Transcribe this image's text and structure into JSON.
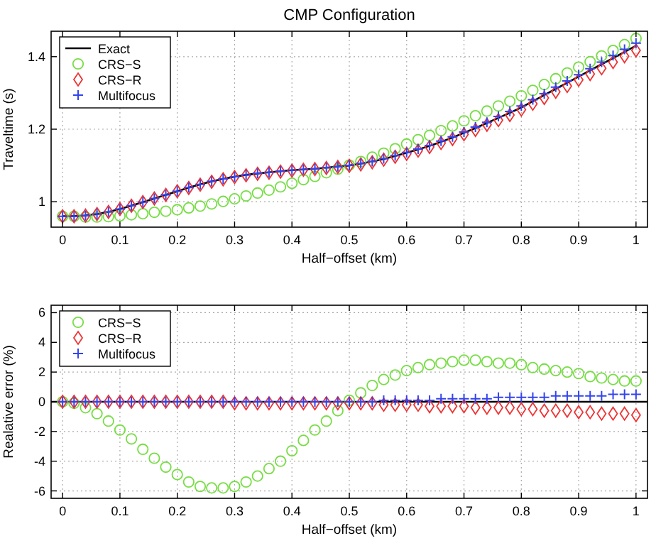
{
  "chart_data": [
    {
      "type": "line",
      "title": "CMP Configuration",
      "xlabel": "Half−offset (km)",
      "ylabel": "Traveltime (s)",
      "xlim": [
        -0.02,
        1.02
      ],
      "ylim": [
        0.93,
        1.47
      ],
      "xticks": [
        0,
        0.1,
        0.2,
        0.3,
        0.4,
        0.5,
        0.6,
        0.7,
        0.8,
        0.9,
        1
      ],
      "yticks": [
        1,
        1.2,
        1.4
      ],
      "grid": true,
      "legend": "top left",
      "x": [
        0,
        0.02,
        0.04,
        0.06,
        0.08,
        0.1,
        0.12,
        0.14,
        0.16,
        0.18,
        0.2,
        0.22,
        0.24,
        0.26,
        0.28,
        0.3,
        0.32,
        0.34,
        0.36,
        0.38,
        0.4,
        0.42,
        0.44,
        0.46,
        0.48,
        0.5,
        0.52,
        0.54,
        0.56,
        0.58,
        0.6,
        0.62,
        0.64,
        0.66,
        0.68,
        0.7,
        0.72,
        0.74,
        0.76,
        0.78,
        0.8,
        0.82,
        0.84,
        0.86,
        0.88,
        0.9,
        0.92,
        0.94,
        0.96,
        0.98,
        1
      ],
      "series": [
        {
          "name": "Exact",
          "color": "#000000",
          "line_style": "solid",
          "values": [
            0.96,
            0.96,
            0.962,
            0.966,
            0.972,
            0.98,
            0.989,
            0.999,
            1.009,
            1.019,
            1.029,
            1.039,
            1.048,
            1.056,
            1.063,
            1.069,
            1.074,
            1.078,
            1.081,
            1.084,
            1.087,
            1.089,
            1.091,
            1.094,
            1.097,
            1.1,
            1.105,
            1.111,
            1.118,
            1.126,
            1.135,
            1.144,
            1.154,
            1.165,
            1.177,
            1.19,
            1.203,
            1.217,
            1.231,
            1.245,
            1.26,
            1.277,
            1.294,
            1.311,
            1.328,
            1.345,
            1.362,
            1.379,
            1.396,
            1.413,
            1.43
          ]
        },
        {
          "name": "CRS−S",
          "type": "scatter",
          "marker": "circle",
          "color": "#77dd44",
          "values": [
            0.96,
            0.96,
            0.958,
            0.958,
            0.959,
            0.961,
            0.964,
            0.967,
            0.971,
            0.974,
            0.978,
            0.983,
            0.988,
            0.994,
            1.001,
            1.008,
            1.016,
            1.024,
            1.032,
            1.041,
            1.051,
            1.061,
            1.07,
            1.08,
            1.09,
            1.101,
            1.111,
            1.123,
            1.134,
            1.146,
            1.159,
            1.171,
            1.183,
            1.196,
            1.209,
            1.223,
            1.237,
            1.25,
            1.264,
            1.277,
            1.292,
            1.307,
            1.323,
            1.339,
            1.355,
            1.371,
            1.386,
            1.402,
            1.417,
            1.433,
            1.45
          ]
        },
        {
          "name": "CRS−R",
          "type": "scatter",
          "marker": "diamond",
          "color": "#ee3333",
          "values": [
            0.96,
            0.96,
            0.962,
            0.966,
            0.972,
            0.98,
            0.989,
            0.999,
            1.009,
            1.019,
            1.029,
            1.038,
            1.047,
            1.055,
            1.062,
            1.068,
            1.073,
            1.077,
            1.08,
            1.083,
            1.086,
            1.088,
            1.09,
            1.093,
            1.096,
            1.099,
            1.103,
            1.109,
            1.116,
            1.124,
            1.132,
            1.141,
            1.151,
            1.162,
            1.173,
            1.186,
            1.198,
            1.212,
            1.225,
            1.239,
            1.254,
            1.27,
            1.286,
            1.303,
            1.319,
            1.336,
            1.352,
            1.368,
            1.385,
            1.401,
            1.417
          ]
        },
        {
          "name": "Multifocus",
          "type": "scatter",
          "marker": "cross",
          "color": "#3344ee",
          "values": [
            0.96,
            0.96,
            0.962,
            0.966,
            0.972,
            0.98,
            0.989,
            0.999,
            1.009,
            1.019,
            1.029,
            1.039,
            1.048,
            1.056,
            1.063,
            1.069,
            1.074,
            1.078,
            1.081,
            1.084,
            1.087,
            1.089,
            1.091,
            1.094,
            1.097,
            1.1,
            1.105,
            1.111,
            1.119,
            1.127,
            1.136,
            1.145,
            1.155,
            1.167,
            1.179,
            1.192,
            1.206,
            1.219,
            1.235,
            1.249,
            1.264,
            1.281,
            1.298,
            1.316,
            1.333,
            1.35,
            1.367,
            1.385,
            1.403,
            1.42,
            1.437
          ]
        }
      ]
    },
    {
      "type": "scatter",
      "xlabel": "Half−offset (km)",
      "ylabel": "Realative error (%)",
      "xlim": [
        -0.02,
        1.02
      ],
      "ylim": [
        -6.5,
        6.5
      ],
      "xticks": [
        0,
        0.1,
        0.2,
        0.3,
        0.4,
        0.5,
        0.6,
        0.7,
        0.8,
        0.9,
        1
      ],
      "yticks": [
        -6,
        -4,
        -2,
        0,
        2,
        4,
        6
      ],
      "grid": true,
      "legend": "top left",
      "ref_lines": [
        {
          "axis": "y",
          "value": 0,
          "color": "#000000"
        }
      ],
      "x": [
        0,
        0.02,
        0.04,
        0.06,
        0.08,
        0.1,
        0.12,
        0.14,
        0.16,
        0.18,
        0.2,
        0.22,
        0.24,
        0.26,
        0.28,
        0.3,
        0.32,
        0.34,
        0.36,
        0.38,
        0.4,
        0.42,
        0.44,
        0.46,
        0.48,
        0.5,
        0.52,
        0.54,
        0.56,
        0.58,
        0.6,
        0.62,
        0.64,
        0.66,
        0.68,
        0.7,
        0.72,
        0.74,
        0.76,
        0.78,
        0.8,
        0.82,
        0.84,
        0.86,
        0.88,
        0.9,
        0.92,
        0.94,
        0.96,
        0.98,
        1
      ],
      "series": [
        {
          "name": "CRS−S",
          "marker": "circle",
          "color": "#77dd44",
          "values": [
            0,
            -0.1,
            -0.4,
            -0.8,
            -1.3,
            -1.9,
            -2.5,
            -3.2,
            -3.8,
            -4.4,
            -4.9,
            -5.4,
            -5.7,
            -5.8,
            -5.8,
            -5.7,
            -5.4,
            -5.0,
            -4.5,
            -4.0,
            -3.3,
            -2.6,
            -1.9,
            -1.3,
            -0.6,
            0.1,
            0.6,
            1.1,
            1.5,
            1.8,
            2.1,
            2.3,
            2.5,
            2.6,
            2.7,
            2.8,
            2.8,
            2.7,
            2.6,
            2.6,
            2.5,
            2.3,
            2.2,
            2.1,
            2.0,
            1.9,
            1.7,
            1.6,
            1.5,
            1.4,
            1.4
          ]
        },
        {
          "name": "CRS−R",
          "marker": "diamond",
          "color": "#ee3333",
          "values": [
            0,
            0,
            0,
            0,
            0,
            0,
            0,
            0,
            0,
            0,
            0,
            0,
            0,
            0,
            0,
            -0.1,
            -0.1,
            -0.1,
            -0.1,
            -0.1,
            -0.1,
            -0.1,
            -0.1,
            -0.1,
            -0.1,
            -0.1,
            -0.1,
            -0.1,
            -0.2,
            -0.2,
            -0.2,
            -0.2,
            -0.3,
            -0.3,
            -0.3,
            -0.3,
            -0.4,
            -0.4,
            -0.4,
            -0.4,
            -0.5,
            -0.5,
            -0.6,
            -0.6,
            -0.6,
            -0.7,
            -0.7,
            -0.8,
            -0.8,
            -0.8,
            -0.9
          ]
        },
        {
          "name": "Multifocus",
          "marker": "cross",
          "color": "#3344ee",
          "values": [
            0,
            0,
            0,
            0,
            0,
            0,
            0,
            0,
            0,
            0,
            0,
            0,
            0,
            0,
            0,
            0,
            0,
            0,
            0,
            0,
            0,
            0,
            0,
            0,
            0,
            0,
            0,
            0,
            0.1,
            0.1,
            0.1,
            0.1,
            0.1,
            0.2,
            0.2,
            0.2,
            0.2,
            0.2,
            0.3,
            0.3,
            0.3,
            0.3,
            0.3,
            0.4,
            0.4,
            0.4,
            0.4,
            0.4,
            0.5,
            0.5,
            0.5
          ]
        }
      ]
    }
  ]
}
